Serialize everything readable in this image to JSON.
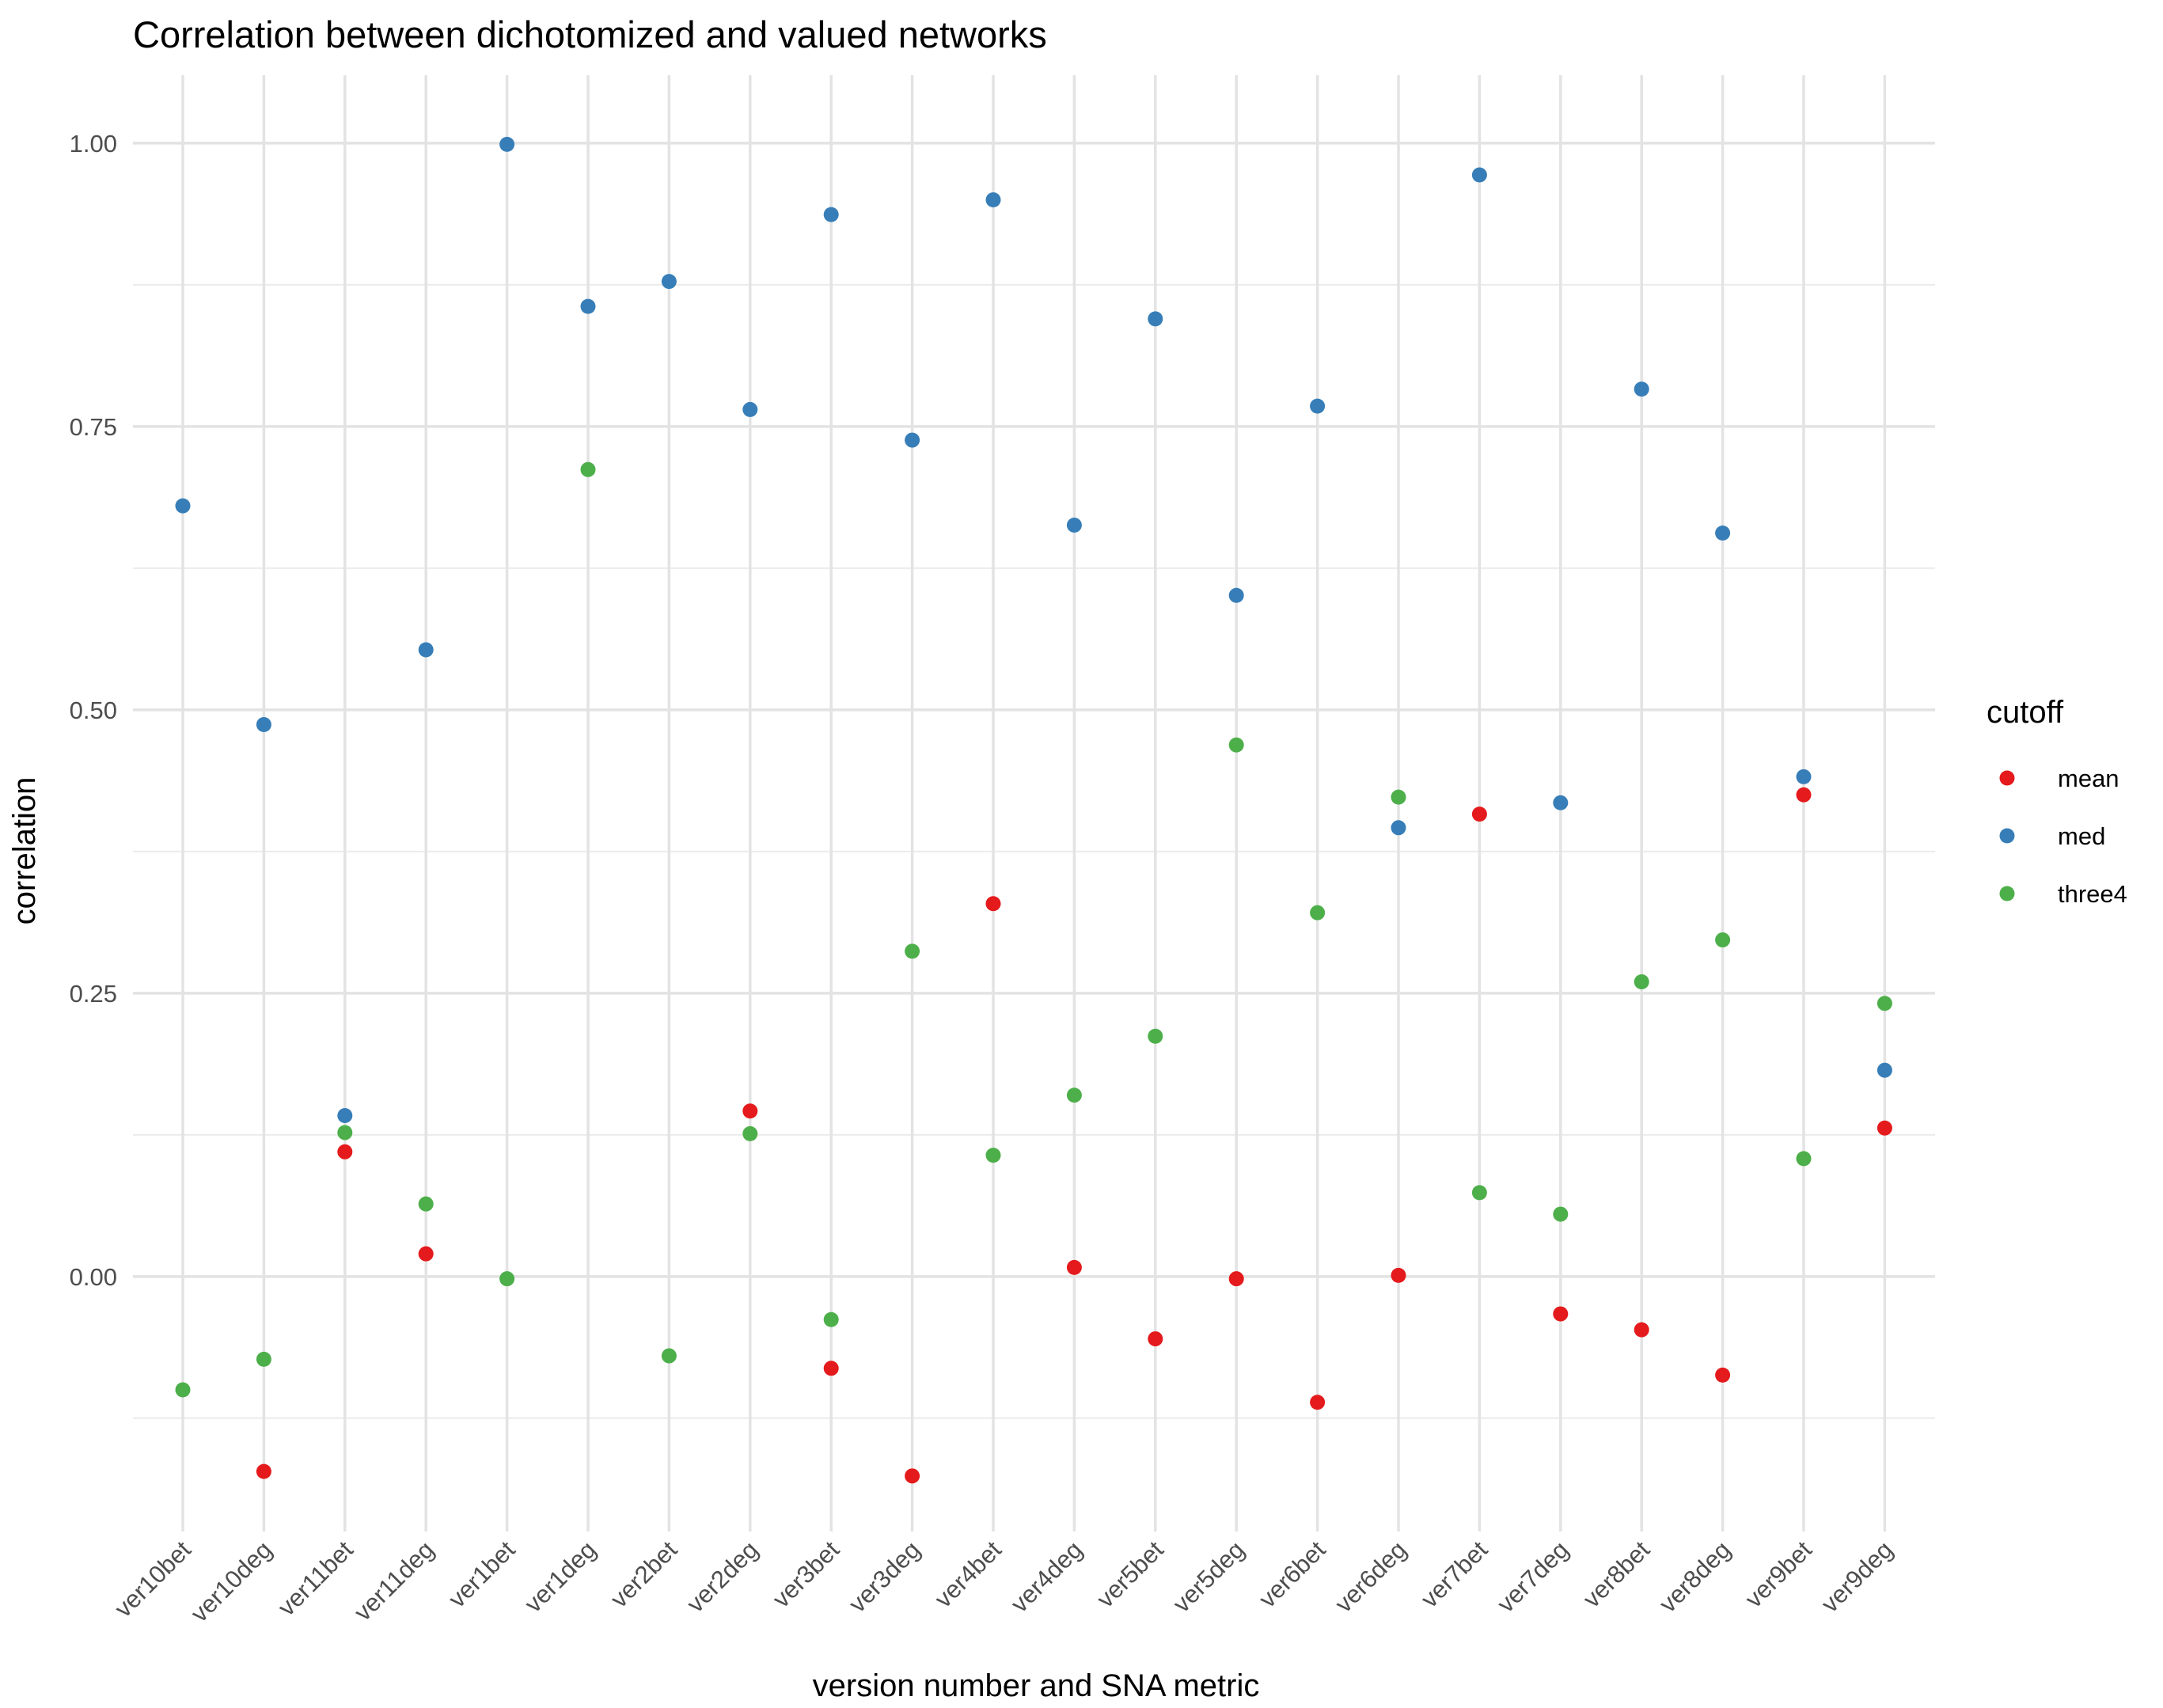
{
  "chart_data": {
    "type": "scatter",
    "title": "Correlation between dichotomized and valued networks",
    "xlabel": "version number and SNA metric",
    "ylabel": "correlation",
    "categories": [
      "ver10bet",
      "ver10deg",
      "ver11bet",
      "ver11deg",
      "ver1bet",
      "ver1deg",
      "ver2bet",
      "ver2deg",
      "ver3bet",
      "ver3deg",
      "ver4bet",
      "ver4deg",
      "ver5bet",
      "ver5deg",
      "ver6bet",
      "ver6deg",
      "ver7bet",
      "ver7deg",
      "ver8bet",
      "ver8deg",
      "ver9bet",
      "ver9deg"
    ],
    "ylim": [
      -0.225,
      1.06
    ],
    "yticks": [
      0.0,
      0.25,
      0.5,
      0.75,
      1.0
    ],
    "ytick_labels": [
      "0.00",
      "0.25",
      "0.50",
      "0.75",
      "1.00"
    ],
    "grid": true,
    "legend": {
      "title": "cutoff",
      "position": "right"
    },
    "series": [
      {
        "name": "mean",
        "color": "#e41a1c",
        "values": [
          null,
          -0.172,
          0.11,
          0.02,
          null,
          null,
          null,
          0.146,
          -0.081,
          -0.176,
          0.329,
          0.008,
          -0.055,
          -0.002,
          -0.111,
          0.001,
          0.408,
          -0.033,
          -0.047,
          -0.087,
          0.425,
          0.131
        ]
      },
      {
        "name": "med",
        "color": "#377eb8",
        "values": [
          0.68,
          0.487,
          0.142,
          0.553,
          0.999,
          0.856,
          0.878,
          0.765,
          0.937,
          0.738,
          0.95,
          0.663,
          0.845,
          0.601,
          0.768,
          0.396,
          0.972,
          0.418,
          0.783,
          0.656,
          0.441,
          0.182
        ]
      },
      {
        "name": "three4",
        "color": "#4daf4a",
        "values": [
          -0.1,
          -0.073,
          0.127,
          0.064,
          -0.002,
          0.712,
          -0.07,
          0.126,
          -0.038,
          0.287,
          0.107,
          0.16,
          0.212,
          0.469,
          0.321,
          0.423,
          0.074,
          0.055,
          0.26,
          0.297,
          0.104,
          0.241
        ]
      }
    ]
  }
}
